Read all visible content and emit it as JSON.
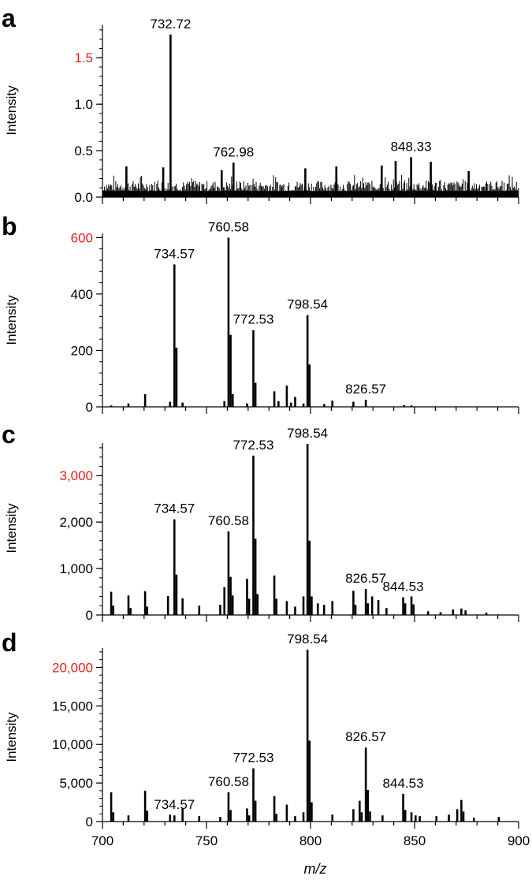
{
  "xlabel": "m/z",
  "x_ticks": [
    "700",
    "750",
    "800",
    "850",
    "900"
  ],
  "chart_data": [
    {
      "type": "bar",
      "panel": "a",
      "xlim": [
        700,
        900
      ],
      "ylim": [
        0,
        1.85
      ],
      "ylabel": "Intensity",
      "y_ticks": [
        {
          "value": 0,
          "label": "0.0",
          "color": "#000000"
        },
        {
          "value": 0.5,
          "label": "0.5",
          "color": "#000000"
        },
        {
          "value": 1.0,
          "label": "1.0",
          "color": "#000000"
        },
        {
          "value": 1.5,
          "label": "1.5",
          "color": "#e0201b"
        }
      ],
      "noise": {
        "baseline": 0.12,
        "amplitude": 0.13,
        "seed": 7
      },
      "peaks": [
        {
          "mz": 732.72,
          "intensity": 1.75,
          "label": "732.72"
        },
        {
          "mz": 762.98,
          "intensity": 0.37,
          "label": "762.98"
        },
        {
          "mz": 848.33,
          "intensity": 0.43,
          "label": "848.33"
        },
        {
          "mz": 729.2,
          "intensity": 0.32
        },
        {
          "mz": 711.5,
          "intensity": 0.33
        },
        {
          "mz": 757.3,
          "intensity": 0.29
        },
        {
          "mz": 812.4,
          "intensity": 0.33
        },
        {
          "mz": 834.2,
          "intensity": 0.34
        },
        {
          "mz": 840.9,
          "intensity": 0.39
        },
        {
          "mz": 857.8,
          "intensity": 0.38
        },
        {
          "mz": 876.0,
          "intensity": 0.28
        },
        {
          "mz": 797.5,
          "intensity": 0.31
        }
      ]
    },
    {
      "type": "bar",
      "panel": "b",
      "xlim": [
        700,
        900
      ],
      "ylim": [
        0,
        615
      ],
      "ylabel": "Intensity",
      "y_ticks": [
        {
          "value": 0,
          "label": "0",
          "color": "#000000"
        },
        {
          "value": 200,
          "label": "200",
          "color": "#000000"
        },
        {
          "value": 400,
          "label": "400",
          "color": "#000000"
        },
        {
          "value": 600,
          "label": "600",
          "color": "#e0201b"
        }
      ],
      "peaks": [
        {
          "mz": 734.57,
          "intensity": 505,
          "label": "734.57"
        },
        {
          "mz": 735.57,
          "intensity": 210
        },
        {
          "mz": 760.58,
          "intensity": 600,
          "label": "760.58"
        },
        {
          "mz": 761.58,
          "intensity": 255
        },
        {
          "mz": 762.6,
          "intensity": 45
        },
        {
          "mz": 772.53,
          "intensity": 272,
          "label": "772.53"
        },
        {
          "mz": 773.53,
          "intensity": 85
        },
        {
          "mz": 798.54,
          "intensity": 325,
          "label": "798.54"
        },
        {
          "mz": 799.54,
          "intensity": 150
        },
        {
          "mz": 826.57,
          "intensity": 25,
          "label": "826.57"
        },
        {
          "mz": 720.5,
          "intensity": 45
        },
        {
          "mz": 712.5,
          "intensity": 12
        },
        {
          "mz": 732.5,
          "intensity": 18
        },
        {
          "mz": 738.5,
          "intensity": 15
        },
        {
          "mz": 758.6,
          "intensity": 20
        },
        {
          "mz": 769.5,
          "intensity": 12
        },
        {
          "mz": 782.6,
          "intensity": 55
        },
        {
          "mz": 784.6,
          "intensity": 20
        },
        {
          "mz": 788.6,
          "intensity": 75
        },
        {
          "mz": 790.6,
          "intensity": 15
        },
        {
          "mz": 792.6,
          "intensity": 35
        },
        {
          "mz": 796.6,
          "intensity": 12
        },
        {
          "mz": 806.6,
          "intensity": 10
        },
        {
          "mz": 810.5,
          "intensity": 22
        },
        {
          "mz": 820.6,
          "intensity": 18
        },
        {
          "mz": 704.2,
          "intensity": 5
        },
        {
          "mz": 845.0,
          "intensity": 6
        },
        {
          "mz": 848.5,
          "intensity": 5
        }
      ]
    },
    {
      "type": "bar",
      "panel": "c",
      "xlim": [
        700,
        900
      ],
      "ylim": [
        0,
        3700
      ],
      "ylabel": "Intensity",
      "y_ticks": [
        {
          "value": 0,
          "label": "0",
          "color": "#000000"
        },
        {
          "value": 1000,
          "label": "1,000",
          "color": "#000000"
        },
        {
          "value": 2000,
          "label": "2,000",
          "color": "#000000"
        },
        {
          "value": 3000,
          "label": "3,000",
          "color": "#e0201b"
        }
      ],
      "peaks": [
        {
          "mz": 734.57,
          "intensity": 2060,
          "label": "734.57"
        },
        {
          "mz": 735.57,
          "intensity": 870
        },
        {
          "mz": 760.58,
          "intensity": 1800,
          "label": "760.58"
        },
        {
          "mz": 761.58,
          "intensity": 820
        },
        {
          "mz": 762.58,
          "intensity": 420
        },
        {
          "mz": 772.53,
          "intensity": 3430,
          "label": "772.53"
        },
        {
          "mz": 773.53,
          "intensity": 1640
        },
        {
          "mz": 774.53,
          "intensity": 450
        },
        {
          "mz": 798.54,
          "intensity": 3680,
          "label": "798.54"
        },
        {
          "mz": 799.54,
          "intensity": 1600
        },
        {
          "mz": 800.54,
          "intensity": 400
        },
        {
          "mz": 826.57,
          "intensity": 560,
          "label": "826.57"
        },
        {
          "mz": 844.53,
          "intensity": 380,
          "label": "844.53"
        },
        {
          "mz": 704.2,
          "intensity": 500
        },
        {
          "mz": 705.2,
          "intensity": 200
        },
        {
          "mz": 712.5,
          "intensity": 420
        },
        {
          "mz": 713.5,
          "intensity": 150
        },
        {
          "mz": 720.5,
          "intensity": 510
        },
        {
          "mz": 721.5,
          "intensity": 180
        },
        {
          "mz": 731.5,
          "intensity": 410
        },
        {
          "mz": 738.5,
          "intensity": 360
        },
        {
          "mz": 746.5,
          "intensity": 200
        },
        {
          "mz": 756.6,
          "intensity": 220
        },
        {
          "mz": 758.6,
          "intensity": 600
        },
        {
          "mz": 769.5,
          "intensity": 780
        },
        {
          "mz": 770.5,
          "intensity": 350
        },
        {
          "mz": 782.6,
          "intensity": 850
        },
        {
          "mz": 783.6,
          "intensity": 350
        },
        {
          "mz": 788.6,
          "intensity": 300
        },
        {
          "mz": 792.6,
          "intensity": 180
        },
        {
          "mz": 796.6,
          "intensity": 400
        },
        {
          "mz": 803.5,
          "intensity": 250
        },
        {
          "mz": 806.5,
          "intensity": 220
        },
        {
          "mz": 810.5,
          "intensity": 300
        },
        {
          "mz": 820.6,
          "intensity": 520
        },
        {
          "mz": 821.6,
          "intensity": 220
        },
        {
          "mz": 827.6,
          "intensity": 250
        },
        {
          "mz": 829.6,
          "intensity": 400
        },
        {
          "mz": 832.6,
          "intensity": 320
        },
        {
          "mz": 836.5,
          "intensity": 150
        },
        {
          "mz": 845.5,
          "intensity": 250
        },
        {
          "mz": 848.5,
          "intensity": 400
        },
        {
          "mz": 849.5,
          "intensity": 230
        },
        {
          "mz": 856.5,
          "intensity": 80
        },
        {
          "mz": 862.5,
          "intensity": 60
        },
        {
          "mz": 868.5,
          "intensity": 120
        },
        {
          "mz": 872.5,
          "intensity": 140
        },
        {
          "mz": 874.5,
          "intensity": 100
        },
        {
          "mz": 884.5,
          "intensity": 50
        }
      ]
    },
    {
      "type": "bar",
      "panel": "d",
      "xlim": [
        700,
        900
      ],
      "ylim": [
        0,
        22500
      ],
      "ylabel": "Intensity",
      "y_ticks": [
        {
          "value": 0,
          "label": "0",
          "color": "#000000"
        },
        {
          "value": 5000,
          "label": "5,000",
          "color": "#000000"
        },
        {
          "value": 10000,
          "label": "10,000",
          "color": "#000000"
        },
        {
          "value": 15000,
          "label": "15,000",
          "color": "#000000"
        },
        {
          "value": 20000,
          "label": "20,000",
          "color": "#e0201b"
        }
      ],
      "peaks": [
        {
          "mz": 734.57,
          "intensity": 800,
          "label": "734.57"
        },
        {
          "mz": 760.58,
          "intensity": 3800,
          "label": "760.58"
        },
        {
          "mz": 761.58,
          "intensity": 1500
        },
        {
          "mz": 772.53,
          "intensity": 6900,
          "label": "772.53"
        },
        {
          "mz": 773.53,
          "intensity": 2700
        },
        {
          "mz": 798.54,
          "intensity": 22300,
          "label": "798.54"
        },
        {
          "mz": 799.54,
          "intensity": 10500
        },
        {
          "mz": 800.54,
          "intensity": 2500
        },
        {
          "mz": 826.57,
          "intensity": 9600,
          "label": "826.57"
        },
        {
          "mz": 827.57,
          "intensity": 4100
        },
        {
          "mz": 844.53,
          "intensity": 3600,
          "label": "844.53"
        },
        {
          "mz": 845.53,
          "intensity": 1500
        },
        {
          "mz": 704.2,
          "intensity": 3800
        },
        {
          "mz": 705.2,
          "intensity": 1200
        },
        {
          "mz": 712.5,
          "intensity": 800
        },
        {
          "mz": 720.5,
          "intensity": 4000
        },
        {
          "mz": 721.5,
          "intensity": 1400
        },
        {
          "mz": 732.5,
          "intensity": 900
        },
        {
          "mz": 738.5,
          "intensity": 1700
        },
        {
          "mz": 746.5,
          "intensity": 700
        },
        {
          "mz": 756.6,
          "intensity": 600
        },
        {
          "mz": 769.5,
          "intensity": 1700
        },
        {
          "mz": 770.5,
          "intensity": 800
        },
        {
          "mz": 782.6,
          "intensity": 3300
        },
        {
          "mz": 783.6,
          "intensity": 1000
        },
        {
          "mz": 788.6,
          "intensity": 2200
        },
        {
          "mz": 792.6,
          "intensity": 700
        },
        {
          "mz": 796.6,
          "intensity": 1200
        },
        {
          "mz": 810.5,
          "intensity": 900
        },
        {
          "mz": 820.6,
          "intensity": 1600
        },
        {
          "mz": 823.6,
          "intensity": 2700
        },
        {
          "mz": 824.6,
          "intensity": 1200
        },
        {
          "mz": 828.6,
          "intensity": 1300
        },
        {
          "mz": 834.6,
          "intensity": 800
        },
        {
          "mz": 848.5,
          "intensity": 1200
        },
        {
          "mz": 850.5,
          "intensity": 800
        },
        {
          "mz": 852.5,
          "intensity": 700
        },
        {
          "mz": 860.5,
          "intensity": 700
        },
        {
          "mz": 866.5,
          "intensity": 900
        },
        {
          "mz": 870.5,
          "intensity": 1600
        },
        {
          "mz": 872.5,
          "intensity": 2800
        },
        {
          "mz": 873.5,
          "intensity": 1300
        },
        {
          "mz": 878.5,
          "intensity": 500
        },
        {
          "mz": 890.5,
          "intensity": 600
        }
      ]
    }
  ]
}
